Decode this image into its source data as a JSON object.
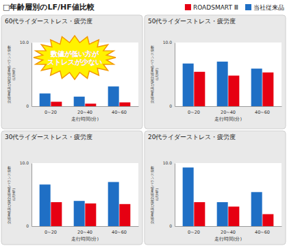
{
  "title": "□年齢層別のLF/HF値比較",
  "chart_data": [
    {
      "type": "bar",
      "title": "60代ライダーストレス・疲労度",
      "xlabel": "走行時間(分)",
      "ylabel": "交感神経及び副交感神経バランス指数\n(LF/HF)",
      "categories": [
        "0~20",
        "20~40",
        "40~60"
      ],
      "series": [
        {
          "name": "ROADSMART Ⅲ",
          "color": "#e60012",
          "values": [
            0.7,
            0.4,
            0.6
          ]
        },
        {
          "name": "当社従来品",
          "color": "#1f6fc5",
          "values": [
            2.0,
            1.5,
            3.1
          ]
        }
      ],
      "ylim": [
        0,
        10
      ],
      "yticks": [
        0,
        {
          "value": 10,
          "label": "10.0"
        }
      ],
      "legend": "top-right",
      "annotations": [
        "数値が低い方が\nストレスが少ない"
      ]
    },
    {
      "type": "bar",
      "title": "50代ライダーストレス・疲労度",
      "xlabel": "走行時間(分)",
      "ylabel": "交感神経及び副交感神経バランス指数\n(LF/HF)",
      "categories": [
        "0~20",
        "20~40",
        "40~60"
      ],
      "series": [
        {
          "name": "ROADSMART Ⅲ",
          "color": "#e60012",
          "values": [
            5.4,
            4.8,
            5.3
          ]
        },
        {
          "name": "当社従来品",
          "color": "#1f6fc5",
          "values": [
            6.7,
            7.0,
            5.9
          ]
        }
      ],
      "ylim": [
        0,
        10
      ],
      "yticks": [
        0,
        {
          "value": 10,
          "label": "10.0"
        }
      ]
    },
    {
      "type": "bar",
      "title": "30代ライダーストレス・疲労度",
      "xlabel": "走行時間(分)",
      "ylabel": "交感神経及び副交感神経バランス指数\n(LF/HF)",
      "categories": [
        "0~20",
        "20~40",
        "40~60"
      ],
      "series": [
        {
          "name": "ROADSMART Ⅲ",
          "color": "#e60012",
          "values": [
            3.8,
            3.6,
            3.5
          ]
        },
        {
          "name": "当社従来品",
          "color": "#1f6fc5",
          "values": [
            6.6,
            4.0,
            7.0
          ]
        }
      ],
      "ylim": [
        0,
        10
      ],
      "yticks": [
        0,
        {
          "value": 10,
          "label": "10.0"
        }
      ]
    },
    {
      "type": "bar",
      "title": "20代ライダーストレス・疲労度",
      "xlabel": "走行時間(分)",
      "ylabel": "交感神経及び副交感神経バランス指数\n(LF/HF)",
      "categories": [
        "0~20",
        "20~40",
        "40~60"
      ],
      "series": [
        {
          "name": "ROADSMART Ⅲ",
          "color": "#e60012",
          "values": [
            3.8,
            3.1,
            1.9
          ]
        },
        {
          "name": "当社従来品",
          "color": "#1f6fc5",
          "values": [
            9.3,
            3.8,
            5.4
          ]
        }
      ],
      "ylim": [
        0,
        10
      ],
      "yticks": [
        0,
        {
          "value": 10,
          "label": "10.0"
        }
      ]
    }
  ]
}
